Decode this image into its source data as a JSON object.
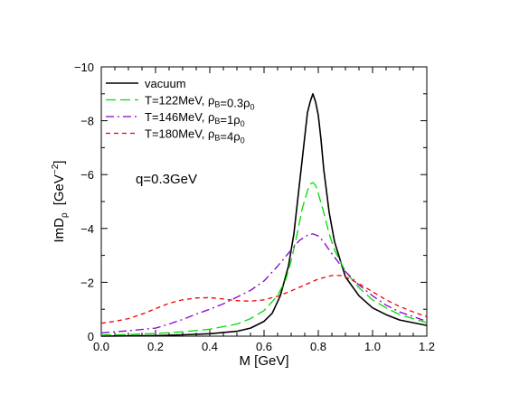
{
  "chart_data": {
    "type": "line",
    "xlabel": "M [GeV]",
    "ylabel": "ImD_ρ [GeV^-2]",
    "ylabel_main": "ImD",
    "ylabel_sub": "ρ",
    "ylabel_unit_open": "[GeV",
    "ylabel_unit_sup": "−2",
    "ylabel_unit_close": "]",
    "xlim": [
      0.0,
      1.2
    ],
    "ylim": [
      0,
      -10
    ],
    "y_inverted": true,
    "x_ticks": [
      0.0,
      0.2,
      0.4,
      0.6,
      0.8,
      1.0,
      1.2
    ],
    "x_tick_labels": [
      "0.0",
      "0.2",
      "0.4",
      "0.6",
      "0.8",
      "1.0",
      "1.2"
    ],
    "y_ticks": [
      0,
      -2,
      -4,
      -6,
      -8,
      -10
    ],
    "y_tick_labels": [
      "0",
      "−2",
      "−4",
      "−6",
      "−8",
      "−10"
    ],
    "grid": false,
    "legend_position": "top-left",
    "annotation": "q=0.3GeV",
    "series": [
      {
        "name": "vacuum",
        "legend_parts": [
          {
            "t": "vacuum"
          }
        ],
        "color": "#000000",
        "dash": "solid",
        "x": [
          0.0,
          0.1,
          0.2,
          0.3,
          0.4,
          0.5,
          0.55,
          0.6,
          0.63,
          0.66,
          0.69,
          0.71,
          0.73,
          0.75,
          0.76,
          0.77,
          0.78,
          0.79,
          0.8,
          0.81,
          0.82,
          0.84,
          0.86,
          0.9,
          0.95,
          1.0,
          1.05,
          1.1,
          1.2
        ],
        "y": [
          0.0,
          -0.01,
          -0.02,
          -0.05,
          -0.09,
          -0.18,
          -0.3,
          -0.55,
          -0.85,
          -1.5,
          -2.6,
          -3.8,
          -5.6,
          -7.4,
          -8.3,
          -8.7,
          -9.0,
          -8.7,
          -8.2,
          -7.3,
          -6.2,
          -4.6,
          -3.5,
          -2.2,
          -1.5,
          -1.05,
          -0.8,
          -0.6,
          -0.4
        ]
      },
      {
        "name": "T=122MeV, ρB=0.3ρ0",
        "legend_parts": [
          {
            "t": "T=122MeV, ρ"
          },
          {
            "sub": "B"
          },
          {
            "t": "=0.3ρ"
          },
          {
            "sub": "0"
          }
        ],
        "color": "#00dd00",
        "dash": "11,5",
        "x": [
          0.0,
          0.1,
          0.2,
          0.3,
          0.4,
          0.5,
          0.55,
          0.6,
          0.65,
          0.68,
          0.7,
          0.72,
          0.74,
          0.76,
          0.77,
          0.78,
          0.79,
          0.8,
          0.82,
          0.84,
          0.86,
          0.9,
          0.95,
          1.0,
          1.05,
          1.1,
          1.2
        ],
        "y": [
          -0.04,
          -0.06,
          -0.1,
          -0.16,
          -0.26,
          -0.45,
          -0.65,
          -0.95,
          -1.5,
          -2.1,
          -2.8,
          -3.7,
          -4.7,
          -5.4,
          -5.65,
          -5.7,
          -5.6,
          -5.3,
          -4.6,
          -3.8,
          -3.2,
          -2.4,
          -1.8,
          -1.35,
          -1.05,
          -0.8,
          -0.5
        ]
      },
      {
        "name": "T=146MeV, ρB=1ρ0",
        "legend_parts": [
          {
            "t": "T=146MeV, ρ"
          },
          {
            "sub": "B"
          },
          {
            "t": "=1ρ"
          },
          {
            "sub": "0"
          }
        ],
        "color": "#8800cc",
        "dash": "9,4,2,4",
        "x": [
          0.0,
          0.1,
          0.2,
          0.25,
          0.3,
          0.35,
          0.4,
          0.45,
          0.5,
          0.55,
          0.6,
          0.65,
          0.7,
          0.73,
          0.76,
          0.78,
          0.8,
          0.82,
          0.84,
          0.87,
          0.9,
          0.95,
          1.0,
          1.05,
          1.1,
          1.2
        ],
        "y": [
          -0.12,
          -0.2,
          -0.3,
          -0.45,
          -0.62,
          -0.82,
          -1.0,
          -1.2,
          -1.45,
          -1.7,
          -2.05,
          -2.6,
          -3.2,
          -3.55,
          -3.75,
          -3.8,
          -3.72,
          -3.5,
          -3.2,
          -2.8,
          -2.4,
          -1.9,
          -1.5,
          -1.15,
          -0.9,
          -0.55
        ]
      },
      {
        "name": "T=180MeV, ρB=4ρ0",
        "legend_parts": [
          {
            "t": "T=180MeV, ρ"
          },
          {
            "sub": "B"
          },
          {
            "t": "=4ρ"
          },
          {
            "sub": "0"
          }
        ],
        "color": "#ee0000",
        "dash": "5,4",
        "x": [
          0.0,
          0.05,
          0.1,
          0.15,
          0.2,
          0.25,
          0.3,
          0.35,
          0.4,
          0.45,
          0.5,
          0.55,
          0.6,
          0.65,
          0.7,
          0.75,
          0.8,
          0.85,
          0.88,
          0.9,
          0.95,
          1.0,
          1.05,
          1.1,
          1.15,
          1.2
        ],
        "y": [
          -0.48,
          -0.55,
          -0.65,
          -0.82,
          -1.02,
          -1.22,
          -1.35,
          -1.42,
          -1.43,
          -1.38,
          -1.32,
          -1.3,
          -1.35,
          -1.48,
          -1.68,
          -1.9,
          -2.12,
          -2.25,
          -2.25,
          -2.2,
          -1.95,
          -1.65,
          -1.35,
          -1.1,
          -0.9,
          -0.72
        ]
      }
    ]
  }
}
